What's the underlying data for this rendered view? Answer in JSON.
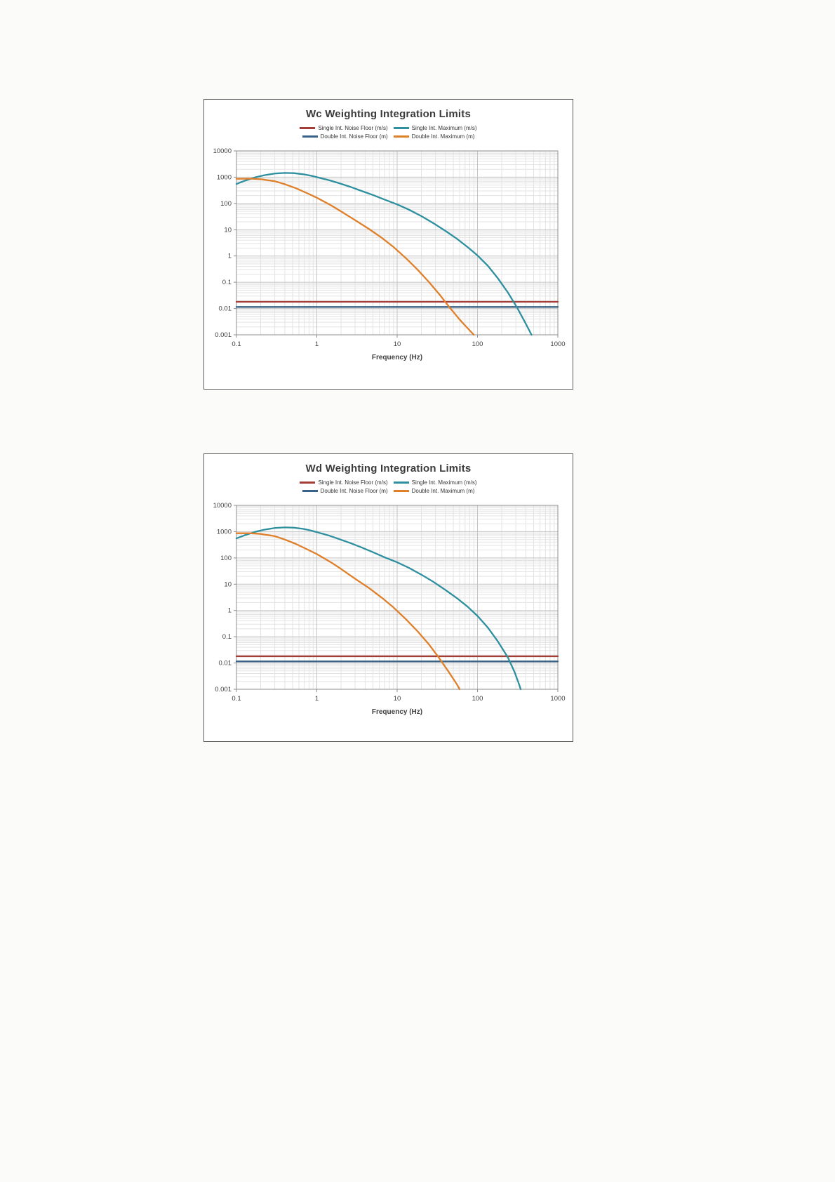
{
  "page": {
    "background": "#fbfbfa"
  },
  "chart_data": [
    {
      "type": "line",
      "title": "Wc Weighting Integration Limits",
      "xlabel": "Frequency (Hz)",
      "ylabel": "",
      "x_scale": "log",
      "y_scale": "log",
      "x_range": [
        0.1,
        1000
      ],
      "y_range": [
        0.001,
        10000
      ],
      "x_ticks": [
        "0.1",
        "1",
        "10",
        "100",
        "1000"
      ],
      "y_ticks": [
        "0.001",
        "0.01",
        "0.1",
        "1",
        "10",
        "100",
        "1000",
        "10000"
      ],
      "grid": true,
      "legend_position": "top",
      "series": [
        {
          "name": "Single Int. Noise Floor (m/s)",
          "color": "#A43C38",
          "points": [
            [
              0.1,
              0.018
            ],
            [
              1000,
              0.018
            ]
          ]
        },
        {
          "name": "Single Int. Maximum (m/s)",
          "color": "#2E8F9F",
          "points": [
            [
              0.1,
              550
            ],
            [
              0.13,
              750
            ],
            [
              0.17,
              980
            ],
            [
              0.22,
              1180
            ],
            [
              0.3,
              1380
            ],
            [
              0.4,
              1450
            ],
            [
              0.52,
              1420
            ],
            [
              0.68,
              1290
            ],
            [
              0.85,
              1130
            ],
            [
              1,
              1000
            ],
            [
              1.4,
              780
            ],
            [
              1.9,
              590
            ],
            [
              2.6,
              430
            ],
            [
              3.5,
              310
            ],
            [
              5,
              210
            ],
            [
              7,
              140
            ],
            [
              10,
              92
            ],
            [
              14,
              58
            ],
            [
              20,
              33
            ],
            [
              28,
              18
            ],
            [
              40,
              9
            ],
            [
              55,
              4.6
            ],
            [
              75,
              2.2
            ],
            [
              100,
              1.05
            ],
            [
              135,
              0.42
            ],
            [
              180,
              0.14
            ],
            [
              240,
              0.04
            ],
            [
              310,
              0.011
            ],
            [
              390,
              0.003
            ],
            [
              470,
              0.001
            ]
          ]
        },
        {
          "name": "Double Int. Noise Floor (m)",
          "color": "#3A6186",
          "points": [
            [
              0.1,
              0.0115
            ],
            [
              1000,
              0.0115
            ]
          ]
        },
        {
          "name": "Double Int. Maximum (m)",
          "color": "#E07F2A",
          "points": [
            [
              0.1,
              870
            ],
            [
              0.15,
              880
            ],
            [
              0.2,
              840
            ],
            [
              0.3,
              700
            ],
            [
              0.4,
              540
            ],
            [
              0.55,
              380
            ],
            [
              0.75,
              250
            ],
            [
              1,
              165
            ],
            [
              1.5,
              85
            ],
            [
              2,
              50
            ],
            [
              3,
              23
            ],
            [
              4.5,
              10.5
            ],
            [
              6.5,
              4.8
            ],
            [
              9,
              2.2
            ],
            [
              13,
              0.8
            ],
            [
              18,
              0.3
            ],
            [
              25,
              0.1
            ],
            [
              34,
              0.033
            ],
            [
              45,
              0.011
            ],
            [
              60,
              0.0038
            ],
            [
              75,
              0.0018
            ],
            [
              90,
              0.001
            ]
          ]
        }
      ]
    },
    {
      "type": "line",
      "title": "Wd Weighting Integration Limits",
      "xlabel": "Frequency (Hz)",
      "ylabel": "",
      "x_scale": "log",
      "y_scale": "log",
      "x_range": [
        0.1,
        1000
      ],
      "y_range": [
        0.001,
        10000
      ],
      "x_ticks": [
        "0.1",
        "1",
        "10",
        "100",
        "1000"
      ],
      "y_ticks": [
        "0.001",
        "0.01",
        "0.1",
        "1",
        "10",
        "100",
        "1000",
        "10000"
      ],
      "grid": true,
      "legend_position": "top",
      "series": [
        {
          "name": "Single Int. Noise Floor (m/s)",
          "color": "#A43C38",
          "points": [
            [
              0.1,
              0.018
            ],
            [
              1000,
              0.018
            ]
          ]
        },
        {
          "name": "Single Int. Maximum (m/s)",
          "color": "#2E8F9F",
          "points": [
            [
              0.1,
              550
            ],
            [
              0.13,
              750
            ],
            [
              0.17,
              980
            ],
            [
              0.22,
              1180
            ],
            [
              0.3,
              1380
            ],
            [
              0.4,
              1450
            ],
            [
              0.52,
              1410
            ],
            [
              0.68,
              1270
            ],
            [
              0.85,
              1100
            ],
            [
              1,
              960
            ],
            [
              1.4,
              720
            ],
            [
              1.9,
              520
            ],
            [
              2.6,
              370
            ],
            [
              3.5,
              260
            ],
            [
              5,
              165
            ],
            [
              7,
              105
            ],
            [
              10,
              68
            ],
            [
              14,
              42
            ],
            [
              20,
              23
            ],
            [
              28,
              12.5
            ],
            [
              40,
              6
            ],
            [
              55,
              3
            ],
            [
              75,
              1.4
            ],
            [
              100,
              0.62
            ],
            [
              135,
              0.22
            ],
            [
              180,
              0.065
            ],
            [
              240,
              0.016
            ],
            [
              290,
              0.0045
            ],
            [
              330,
              0.0015
            ],
            [
              345,
              0.001
            ]
          ]
        },
        {
          "name": "Double Int. Noise Floor (m)",
          "color": "#3A6186",
          "points": [
            [
              0.1,
              0.0115
            ],
            [
              1000,
              0.0115
            ]
          ]
        },
        {
          "name": "Double Int. Maximum (m)",
          "color": "#E07F2A",
          "points": [
            [
              0.1,
              870
            ],
            [
              0.15,
              870
            ],
            [
              0.2,
              820
            ],
            [
              0.3,
              670
            ],
            [
              0.4,
              500
            ],
            [
              0.55,
              340
            ],
            [
              0.75,
              215
            ],
            [
              1,
              140
            ],
            [
              1.5,
              68
            ],
            [
              2,
              38
            ],
            [
              3,
              16
            ],
            [
              4.5,
              7
            ],
            [
              6.5,
              3
            ],
            [
              9,
              1.3
            ],
            [
              13,
              0.45
            ],
            [
              18,
              0.16
            ],
            [
              25,
              0.05
            ],
            [
              33,
              0.016
            ],
            [
              43,
              0.005
            ],
            [
              55,
              0.0016
            ],
            [
              60,
              0.001
            ]
          ]
        }
      ]
    }
  ]
}
